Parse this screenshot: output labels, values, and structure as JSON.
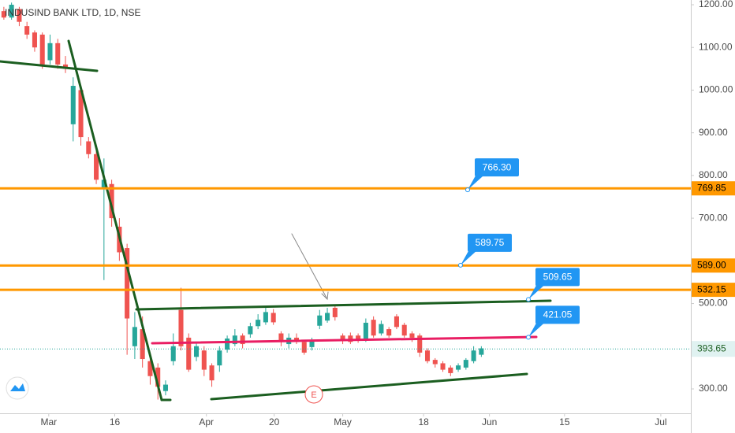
{
  "chart_data": {
    "type": "candlestick",
    "title": "INDUSIND BANK LTD, 1D, NSE",
    "up_color": "#26a69a",
    "down_color": "#ef5350",
    "x": [
      0,
      1,
      2,
      3,
      4,
      5,
      6,
      7,
      8,
      9,
      10,
      11,
      12,
      13,
      14,
      15,
      16,
      17,
      18,
      19,
      20,
      21,
      22,
      23,
      24,
      25,
      26,
      27,
      28,
      29,
      30,
      31,
      32,
      33,
      34,
      35,
      36,
      37,
      38,
      39,
      40,
      41,
      42,
      43,
      44,
      45,
      46,
      47,
      48,
      49,
      50,
      51,
      52,
      53,
      54,
      55,
      56,
      57,
      58,
      59,
      60,
      61,
      62
    ],
    "open": [
      1185,
      1170,
      1190,
      1150,
      1135,
      1130,
      1070,
      1110,
      1060,
      920,
      1000,
      880,
      850,
      770,
      780,
      680,
      630,
      400,
      440,
      365,
      350,
      295,
      365,
      485,
      420,
      375,
      390,
      355,
      355,
      392,
      405,
      425,
      428,
      447,
      456,
      478,
      430,
      405,
      420,
      410,
      398,
      448,
      460,
      490,
      425,
      425,
      425,
      418,
      462,
      430,
      440,
      470,
      450,
      430,
      425,
      390,
      368,
      360,
      350,
      345,
      350,
      365,
      380
    ],
    "high": [
      1195,
      1205,
      1195,
      1160,
      1140,
      1135,
      1130,
      1120,
      1080,
      1030,
      1010,
      890,
      860,
      840,
      790,
      700,
      640,
      480,
      470,
      385,
      360,
      320,
      430,
      537,
      430,
      410,
      400,
      360,
      400,
      425,
      440,
      430,
      455,
      475,
      490,
      487,
      435,
      430,
      430,
      415,
      420,
      485,
      490,
      495,
      430,
      432,
      430,
      465,
      470,
      460,
      445,
      475,
      455,
      435,
      430,
      395,
      372,
      365,
      355,
      360,
      372,
      400,
      400
    ],
    "low": [
      1165,
      1165,
      1150,
      1120,
      1090,
      1050,
      1060,
      1050,
      1040,
      880,
      870,
      840,
      780,
      555,
      680,
      600,
      380,
      370,
      350,
      310,
      275,
      285,
      355,
      390,
      340,
      365,
      330,
      305,
      340,
      385,
      400,
      395,
      420,
      440,
      450,
      450,
      400,
      395,
      405,
      380,
      390,
      440,
      455,
      460,
      405,
      405,
      408,
      410,
      420,
      425,
      420,
      440,
      420,
      410,
      375,
      360,
      350,
      340,
      330,
      340,
      345,
      360,
      375
    ],
    "close": [
      1170,
      1200,
      1160,
      1130,
      1100,
      1060,
      1110,
      1060,
      1050,
      1010,
      890,
      850,
      790,
      790,
      700,
      620,
      465,
      445,
      370,
      330,
      305,
      310,
      400,
      400,
      345,
      400,
      345,
      320,
      390,
      418,
      425,
      405,
      447,
      462,
      480,
      456,
      410,
      420,
      410,
      385,
      415,
      472,
      478,
      468,
      412,
      410,
      413,
      455,
      425,
      452,
      425,
      445,
      425,
      420,
      385,
      365,
      358,
      345,
      337,
      355,
      368,
      390,
      395
    ],
    "xlim": [
      -0.5,
      89.2
    ],
    "xticks": [
      {
        "value": 5.83,
        "label": "Mar"
      },
      {
        "value": 14.4,
        "label": "16"
      },
      {
        "value": 26.3,
        "label": "Apr"
      },
      {
        "value": 35.1,
        "label": "20"
      },
      {
        "value": 44.0,
        "label": "May"
      },
      {
        "value": 54.5,
        "label": "18"
      },
      {
        "value": 63.05,
        "label": "Jun"
      },
      {
        "value": 72.8,
        "label": "15"
      },
      {
        "value": 85.3,
        "label": "Jul"
      }
    ],
    "ylim": [
      242.8,
      1211.1
    ],
    "yticks": [
      {
        "value": 1200,
        "label": "1200.00"
      },
      {
        "value": 1100,
        "label": "1100.00"
      },
      {
        "value": 1000,
        "label": "1000.00"
      },
      {
        "value": 900,
        "label": "900.00"
      },
      {
        "value": 800,
        "label": "800.00"
      },
      {
        "value": 700,
        "label": "700.00"
      },
      {
        "value": 500,
        "label": "500.00"
      },
      {
        "value": 300,
        "label": "300.00"
      }
    ],
    "hlines": [
      {
        "price": 769.85,
        "color": "#ff9800"
      },
      {
        "price": {
          "value": 589,
          "label": "589.00"
        },
        "color": "#ff9800"
      },
      {
        "price": 532.15,
        "color": "#ff9800"
      }
    ],
    "last_price": 393.65,
    "callouts": [
      {
        "value": 766.3,
        "label": "766.30"
      },
      {
        "value": 589.75,
        "label": "589.75"
      },
      {
        "value": 509.65,
        "label": "509.65"
      },
      {
        "value": 421.05,
        "label": "421.05"
      }
    ],
    "marker": "E"
  }
}
